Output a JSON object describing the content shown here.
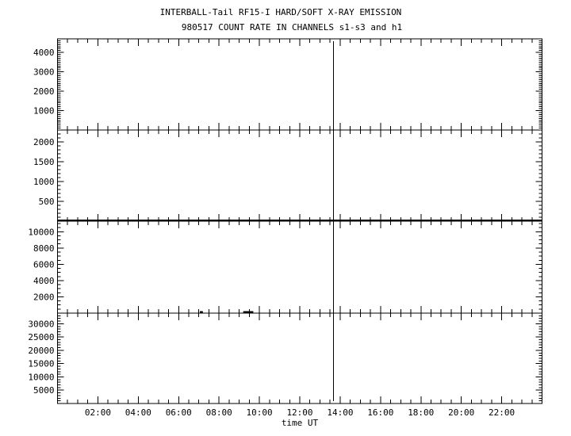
{
  "chart_data": [
    {
      "type": "line",
      "title": "INTERBALL-Tail RF15-I HARD/SOFT X-RAY EMISSION",
      "subtitle": "980517  COUNT RATE IN CHANNELS s1-s3 and h1",
      "xlabel": "time UT",
      "xlim_hours": [
        0,
        24
      ],
      "x_tick_labels": [
        "02:00",
        "04:00",
        "06:00",
        "08:00",
        "10:00",
        "12:00",
        "14:00",
        "16:00",
        "18:00",
        "20:00",
        "22:00"
      ],
      "marker_line_time": "13:40",
      "grid": false,
      "line_color": "#000000",
      "panels": [
        {
          "ylim": [
            0,
            4700
          ],
          "y_ticks": [
            1000,
            2000,
            3000,
            4000
          ],
          "minor_step": 100,
          "series": {
            "x_hours": [],
            "values": []
          }
        },
        {
          "ylim": [
            0,
            2300
          ],
          "y_ticks": [
            500,
            1000,
            1500,
            2000
          ],
          "minor_step": 100,
          "series": {
            "x_hours": [
              0,
              24
            ],
            "values": [
              15,
              15
            ]
          }
        },
        {
          "ylim": [
            0,
            11300
          ],
          "y_ticks": [
            2000,
            4000,
            6000,
            8000,
            10000
          ],
          "minor_step": 500,
          "series": {
            "x_hours": [
              7.05,
              7.2,
              9.2,
              9.7
            ],
            "values": [
              150,
              150,
              150,
              150
            ],
            "segments": [
              [
                0,
                1
              ],
              [
                2,
                3
              ]
            ]
          }
        },
        {
          "ylim": [
            0,
            34000
          ],
          "y_ticks": [
            5000,
            10000,
            15000,
            20000,
            25000,
            30000
          ],
          "minor_step": 1000,
          "series": {
            "x_hours": [],
            "values": []
          }
        }
      ]
    }
  ]
}
